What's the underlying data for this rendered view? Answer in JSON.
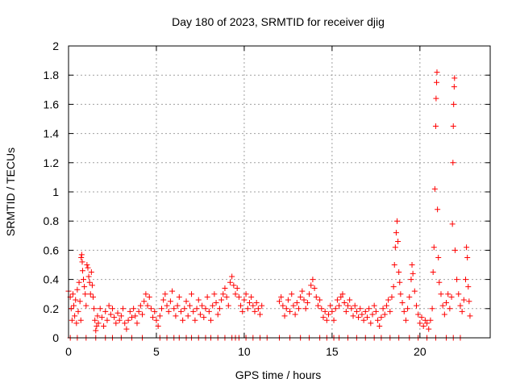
{
  "chart_data": {
    "type": "scatter",
    "title": "Day 180 of 2023, SRMTID for receiver djig",
    "xlabel": "GPS time / hours",
    "ylabel": "SRMTID / TECUs",
    "xlim": [
      0,
      24
    ],
    "ylim": [
      0,
      2
    ],
    "xticks": [
      0,
      5,
      10,
      15,
      20
    ],
    "xtick_labels": [
      "0",
      "5",
      "10",
      "15",
      "20"
    ],
    "yticks": [
      0,
      0.2,
      0.4,
      0.6,
      0.8,
      1,
      1.2,
      1.4,
      1.6,
      1.8,
      2
    ],
    "ytick_labels": [
      "0",
      "0.2",
      "0.4",
      "0.6",
      "0.8",
      "1",
      "1.2",
      "1.4",
      "1.6",
      "1.8",
      "2"
    ],
    "grid": true,
    "marker": "+",
    "color": "#ff0000",
    "series": [
      {
        "name": "SRMTID",
        "points": [
          [
            0.0,
            0.32
          ],
          [
            0.1,
            0.28
          ],
          [
            0.15,
            0.2
          ],
          [
            0.2,
            0.12
          ],
          [
            0.25,
            0.3
          ],
          [
            0.3,
            0.22
          ],
          [
            0.35,
            0.15
          ],
          [
            0.4,
            0.26
          ],
          [
            0.45,
            0.1
          ],
          [
            0.5,
            0.33
          ],
          [
            0.55,
            0.18
          ],
          [
            0.6,
            0.38
          ],
          [
            0.65,
            0.25
          ],
          [
            0.7,
            0.12
          ],
          [
            0.72,
            0.55
          ],
          [
            0.75,
            0.57
          ],
          [
            0.78,
            0.52
          ],
          [
            0.8,
            0.46
          ],
          [
            0.85,
            0.4
          ],
          [
            0.9,
            0.35
          ],
          [
            0.95,
            0.3
          ],
          [
            1.0,
            0.22
          ],
          [
            1.05,
            0.5
          ],
          [
            1.1,
            0.48
          ],
          [
            1.15,
            0.42
          ],
          [
            1.2,
            0.38
          ],
          [
            1.25,
            0.3
          ],
          [
            1.3,
            0.45
          ],
          [
            1.35,
            0.36
          ],
          [
            1.4,
            0.28
          ],
          [
            1.45,
            0.2
          ],
          [
            1.5,
            0.12
          ],
          [
            1.55,
            0.05
          ],
          [
            1.6,
            0.08
          ],
          [
            1.65,
            0.15
          ],
          [
            1.7,
            0.1
          ],
          [
            1.8,
            0.2
          ],
          [
            1.9,
            0.14
          ],
          [
            2.0,
            0.08
          ],
          [
            2.1,
            0.18
          ],
          [
            2.2,
            0.12
          ],
          [
            2.3,
            0.22
          ],
          [
            2.4,
            0.16
          ],
          [
            2.5,
            0.2
          ],
          [
            2.6,
            0.14
          ],
          [
            2.7,
            0.1
          ],
          [
            2.8,
            0.17
          ],
          [
            2.9,
            0.12
          ],
          [
            3.0,
            0.15
          ],
          [
            3.1,
            0.2
          ],
          [
            3.2,
            0.1
          ],
          [
            3.3,
            0.06
          ],
          [
            3.4,
            0.12
          ],
          [
            3.5,
            0.18
          ],
          [
            3.6,
            0.14
          ],
          [
            3.7,
            0.2
          ],
          [
            3.8,
            0.15
          ],
          [
            3.9,
            0.1
          ],
          [
            4.0,
            0.18
          ],
          [
            4.1,
            0.22
          ],
          [
            4.2,
            0.16
          ],
          [
            4.3,
            0.25
          ],
          [
            4.4,
            0.3
          ],
          [
            4.5,
            0.22
          ],
          [
            4.6,
            0.28
          ],
          [
            4.7,
            0.2
          ],
          [
            4.8,
            0.14
          ],
          [
            4.9,
            0.18
          ],
          [
            5.0,
            0.12
          ],
          [
            5.1,
            0.08
          ],
          [
            5.2,
            0.15
          ],
          [
            5.3,
            0.2
          ],
          [
            5.4,
            0.26
          ],
          [
            5.5,
            0.3
          ],
          [
            5.6,
            0.22
          ],
          [
            5.7,
            0.18
          ],
          [
            5.8,
            0.25
          ],
          [
            5.9,
            0.32
          ],
          [
            6.0,
            0.2
          ],
          [
            6.1,
            0.15
          ],
          [
            6.2,
            0.22
          ],
          [
            6.3,
            0.28
          ],
          [
            6.4,
            0.18
          ],
          [
            6.5,
            0.12
          ],
          [
            6.6,
            0.2
          ],
          [
            6.7,
            0.25
          ],
          [
            6.8,
            0.15
          ],
          [
            6.9,
            0.22
          ],
          [
            7.0,
            0.3
          ],
          [
            7.1,
            0.18
          ],
          [
            7.2,
            0.12
          ],
          [
            7.3,
            0.2
          ],
          [
            7.4,
            0.26
          ],
          [
            7.5,
            0.16
          ],
          [
            7.6,
            0.22
          ],
          [
            7.7,
            0.14
          ],
          [
            7.8,
            0.2
          ],
          [
            7.9,
            0.28
          ],
          [
            8.0,
            0.18
          ],
          [
            8.1,
            0.12
          ],
          [
            8.2,
            0.22
          ],
          [
            8.3,
            0.3
          ],
          [
            8.4,
            0.24
          ],
          [
            8.5,
            0.16
          ],
          [
            8.6,
            0.2
          ],
          [
            8.7,
            0.26
          ],
          [
            8.8,
            0.3
          ],
          [
            8.9,
            0.34
          ],
          [
            9.0,
            0.28
          ],
          [
            9.1,
            0.22
          ],
          [
            9.2,
            0.38
          ],
          [
            9.3,
            0.42
          ],
          [
            9.4,
            0.36
          ],
          [
            9.5,
            0.3
          ],
          [
            9.6,
            0.34
          ],
          [
            9.7,
            0.28
          ],
          [
            9.8,
            0.22
          ],
          [
            9.9,
            0.18
          ],
          [
            10.0,
            0.26
          ],
          [
            10.1,
            0.3
          ],
          [
            10.2,
            0.2
          ],
          [
            10.3,
            0.24
          ],
          [
            10.4,
            0.28
          ],
          [
            10.5,
            0.22
          ],
          [
            10.6,
            0.18
          ],
          [
            10.7,
            0.24
          ],
          [
            10.8,
            0.2
          ],
          [
            10.9,
            0.16
          ],
          [
            11.0,
            0.22
          ],
          [
            12.0,
            0.25
          ],
          [
            12.1,
            0.28
          ],
          [
            12.2,
            0.22
          ],
          [
            12.3,
            0.15
          ],
          [
            12.4,
            0.2
          ],
          [
            12.5,
            0.26
          ],
          [
            12.6,
            0.18
          ],
          [
            12.7,
            0.3
          ],
          [
            12.8,
            0.22
          ],
          [
            12.9,
            0.16
          ],
          [
            13.0,
            0.24
          ],
          [
            13.1,
            0.2
          ],
          [
            13.2,
            0.28
          ],
          [
            13.3,
            0.32
          ],
          [
            13.4,
            0.26
          ],
          [
            13.5,
            0.2
          ],
          [
            13.6,
            0.24
          ],
          [
            13.7,
            0.3
          ],
          [
            13.8,
            0.36
          ],
          [
            13.9,
            0.4
          ],
          [
            14.0,
            0.34
          ],
          [
            14.1,
            0.28
          ],
          [
            14.2,
            0.22
          ],
          [
            14.3,
            0.26
          ],
          [
            14.4,
            0.2
          ],
          [
            14.5,
            0.14
          ],
          [
            14.6,
            0.18
          ],
          [
            14.7,
            0.12
          ],
          [
            14.8,
            0.16
          ],
          [
            14.9,
            0.22
          ],
          [
            15.0,
            0.18
          ],
          [
            15.1,
            0.12
          ],
          [
            15.2,
            0.2
          ],
          [
            15.3,
            0.26
          ],
          [
            15.4,
            0.22
          ],
          [
            15.5,
            0.28
          ],
          [
            15.6,
            0.3
          ],
          [
            15.7,
            0.24
          ],
          [
            15.8,
            0.18
          ],
          [
            15.9,
            0.22
          ],
          [
            16.0,
            0.26
          ],
          [
            16.1,
            0.2
          ],
          [
            16.2,
            0.15
          ],
          [
            16.3,
            0.22
          ],
          [
            16.4,
            0.18
          ],
          [
            16.5,
            0.14
          ],
          [
            16.6,
            0.2
          ],
          [
            16.7,
            0.16
          ],
          [
            16.8,
            0.12
          ],
          [
            16.9,
            0.18
          ],
          [
            17.0,
            0.14
          ],
          [
            17.1,
            0.2
          ],
          [
            17.2,
            0.1
          ],
          [
            17.3,
            0.16
          ],
          [
            17.4,
            0.22
          ],
          [
            17.5,
            0.18
          ],
          [
            17.6,
            0.12
          ],
          [
            17.7,
            0.08
          ],
          [
            17.8,
            0.14
          ],
          [
            17.9,
            0.2
          ],
          [
            18.0,
            0.16
          ],
          [
            18.1,
            0.22
          ],
          [
            18.2,
            0.26
          ],
          [
            18.3,
            0.18
          ],
          [
            18.4,
            0.28
          ],
          [
            18.5,
            0.35
          ],
          [
            18.55,
            0.5
          ],
          [
            18.6,
            0.62
          ],
          [
            18.65,
            0.72
          ],
          [
            18.7,
            0.8
          ],
          [
            18.75,
            0.66
          ],
          [
            18.8,
            0.45
          ],
          [
            18.85,
            0.38
          ],
          [
            18.9,
            0.3
          ],
          [
            19.0,
            0.24
          ],
          [
            19.1,
            0.18
          ],
          [
            19.2,
            0.12
          ],
          [
            19.3,
            0.2
          ],
          [
            19.4,
            0.28
          ],
          [
            19.5,
            0.4
          ],
          [
            19.55,
            0.5
          ],
          [
            19.6,
            0.44
          ],
          [
            19.7,
            0.32
          ],
          [
            19.8,
            0.22
          ],
          [
            19.9,
            0.16
          ],
          [
            20.0,
            0.1
          ],
          [
            20.1,
            0.14
          ],
          [
            20.2,
            0.08
          ],
          [
            20.3,
            0.12
          ],
          [
            20.4,
            0.1
          ],
          [
            20.5,
            0.06
          ],
          [
            20.6,
            0.12
          ],
          [
            20.7,
            0.2
          ],
          [
            20.75,
            0.45
          ],
          [
            20.8,
            0.62
          ],
          [
            20.85,
            1.02
          ],
          [
            20.9,
            1.45
          ],
          [
            20.92,
            1.64
          ],
          [
            20.95,
            1.75
          ],
          [
            20.97,
            1.82
          ],
          [
            21.0,
            0.88
          ],
          [
            21.05,
            0.55
          ],
          [
            21.1,
            0.38
          ],
          [
            21.2,
            0.3
          ],
          [
            21.3,
            0.22
          ],
          [
            21.4,
            0.16
          ],
          [
            21.5,
            0.24
          ],
          [
            21.6,
            0.3
          ],
          [
            21.7,
            0.2
          ],
          [
            21.8,
            0.28
          ],
          [
            21.85,
            0.78
          ],
          [
            21.88,
            1.2
          ],
          [
            21.9,
            1.45
          ],
          [
            21.92,
            1.6
          ],
          [
            21.95,
            1.72
          ],
          [
            21.97,
            1.78
          ],
          [
            22.0,
            0.6
          ],
          [
            22.1,
            0.4
          ],
          [
            22.2,
            0.3
          ],
          [
            22.3,
            0.22
          ],
          [
            22.4,
            0.18
          ],
          [
            22.5,
            0.26
          ],
          [
            22.6,
            0.4
          ],
          [
            22.65,
            0.62
          ],
          [
            22.7,
            0.55
          ],
          [
            22.75,
            0.35
          ],
          [
            22.8,
            0.25
          ],
          [
            22.85,
            0.15
          ]
        ]
      }
    ],
    "zero_points_x": [
      0.1,
      0.5,
      1.0,
      1.55,
      2.1,
      2.5,
      3.0,
      3.6,
      4.2,
      5.2,
      5.6,
      6.0,
      6.3,
      6.7,
      7.0,
      7.4,
      7.8,
      8.1,
      8.5,
      8.9,
      9.3,
      9.5,
      9.7,
      10.1,
      10.5,
      10.9,
      11.3,
      12.0,
      12.6,
      13.2,
      13.7,
      14.3,
      14.7,
      15.1,
      15.4,
      15.9,
      16.4,
      16.9,
      17.4,
      17.8,
      18.3,
      18.8,
      19.4,
      19.9,
      20.4,
      20.9,
      21.5,
      21.9,
      22.3
    ]
  }
}
